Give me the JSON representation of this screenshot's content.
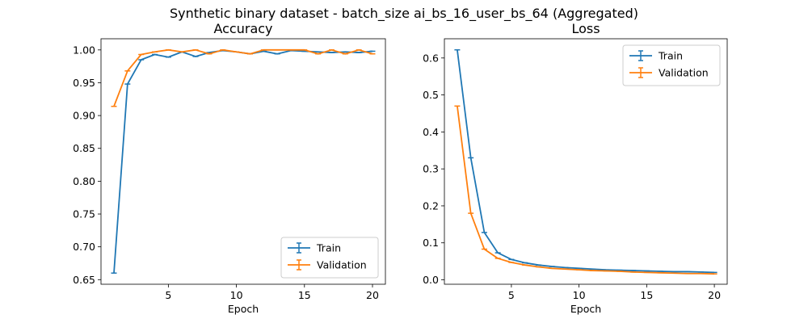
{
  "suptitle": "Synthetic binary dataset - batch_size ai_bs_16_user_bs_64 (Aggregated)",
  "colors": {
    "train": "#1f77b4",
    "validation": "#ff7f0e"
  },
  "chart_data": [
    {
      "type": "line",
      "title": "Accuracy",
      "xlabel": "Epoch",
      "ylabel": "",
      "xlim": [
        0.05,
        20.95
      ],
      "ylim": [
        0.643,
        1.017
      ],
      "xticks": [
        5,
        10,
        15,
        20
      ],
      "yticks": [
        0.65,
        0.7,
        0.75,
        0.8,
        0.85,
        0.9,
        0.95,
        1.0
      ],
      "ytick_labels": [
        "0.65",
        "0.70",
        "0.75",
        "0.80",
        "0.85",
        "0.90",
        "0.95",
        "1.00"
      ],
      "legend_position": "lower-right",
      "x": [
        1,
        2,
        3,
        4,
        5,
        6,
        7,
        8,
        9,
        10,
        11,
        12,
        13,
        14,
        15,
        16,
        17,
        18,
        19,
        20
      ],
      "series": [
        {
          "name": "Train",
          "color": "#1f77b4",
          "values": [
            0.66,
            0.948,
            0.985,
            0.993,
            0.989,
            0.997,
            0.99,
            0.996,
            0.999,
            0.997,
            0.994,
            0.998,
            0.994,
            0.999,
            0.998,
            0.997,
            0.996,
            0.997,
            0.996,
            0.998
          ]
        },
        {
          "name": "Validation",
          "color": "#ff7f0e",
          "values": [
            0.914,
            0.968,
            0.993,
            0.997,
            1.0,
            0.997,
            1.0,
            0.994,
            1.0,
            0.997,
            0.994,
            1.0,
            1.0,
            1.0,
            1.0,
            0.994,
            1.0,
            0.994,
            1.0,
            0.994
          ]
        }
      ]
    },
    {
      "type": "line",
      "title": "Loss",
      "xlabel": "Epoch",
      "ylabel": "",
      "xlim": [
        0.05,
        20.95
      ],
      "ylim": [
        -0.012,
        0.652
      ],
      "xticks": [
        5,
        10,
        15,
        20
      ],
      "yticks": [
        0.0,
        0.1,
        0.2,
        0.3,
        0.4,
        0.5,
        0.6
      ],
      "ytick_labels": [
        "0.0",
        "0.1",
        "0.2",
        "0.3",
        "0.4",
        "0.5",
        "0.6"
      ],
      "legend_position": "upper-right",
      "x": [
        1,
        2,
        3,
        4,
        5,
        6,
        7,
        8,
        9,
        10,
        11,
        12,
        13,
        14,
        15,
        16,
        17,
        18,
        19,
        20
      ],
      "series": [
        {
          "name": "Train",
          "color": "#1f77b4",
          "values": [
            0.622,
            0.33,
            0.128,
            0.073,
            0.055,
            0.046,
            0.04,
            0.036,
            0.033,
            0.031,
            0.029,
            0.027,
            0.026,
            0.025,
            0.024,
            0.023,
            0.022,
            0.022,
            0.021,
            0.02
          ]
        },
        {
          "name": "Validation",
          "color": "#ff7f0e",
          "values": [
            0.47,
            0.18,
            0.083,
            0.058,
            0.047,
            0.04,
            0.035,
            0.031,
            0.029,
            0.027,
            0.025,
            0.024,
            0.023,
            0.021,
            0.02,
            0.019,
            0.018,
            0.017,
            0.017,
            0.016
          ]
        }
      ]
    }
  ]
}
